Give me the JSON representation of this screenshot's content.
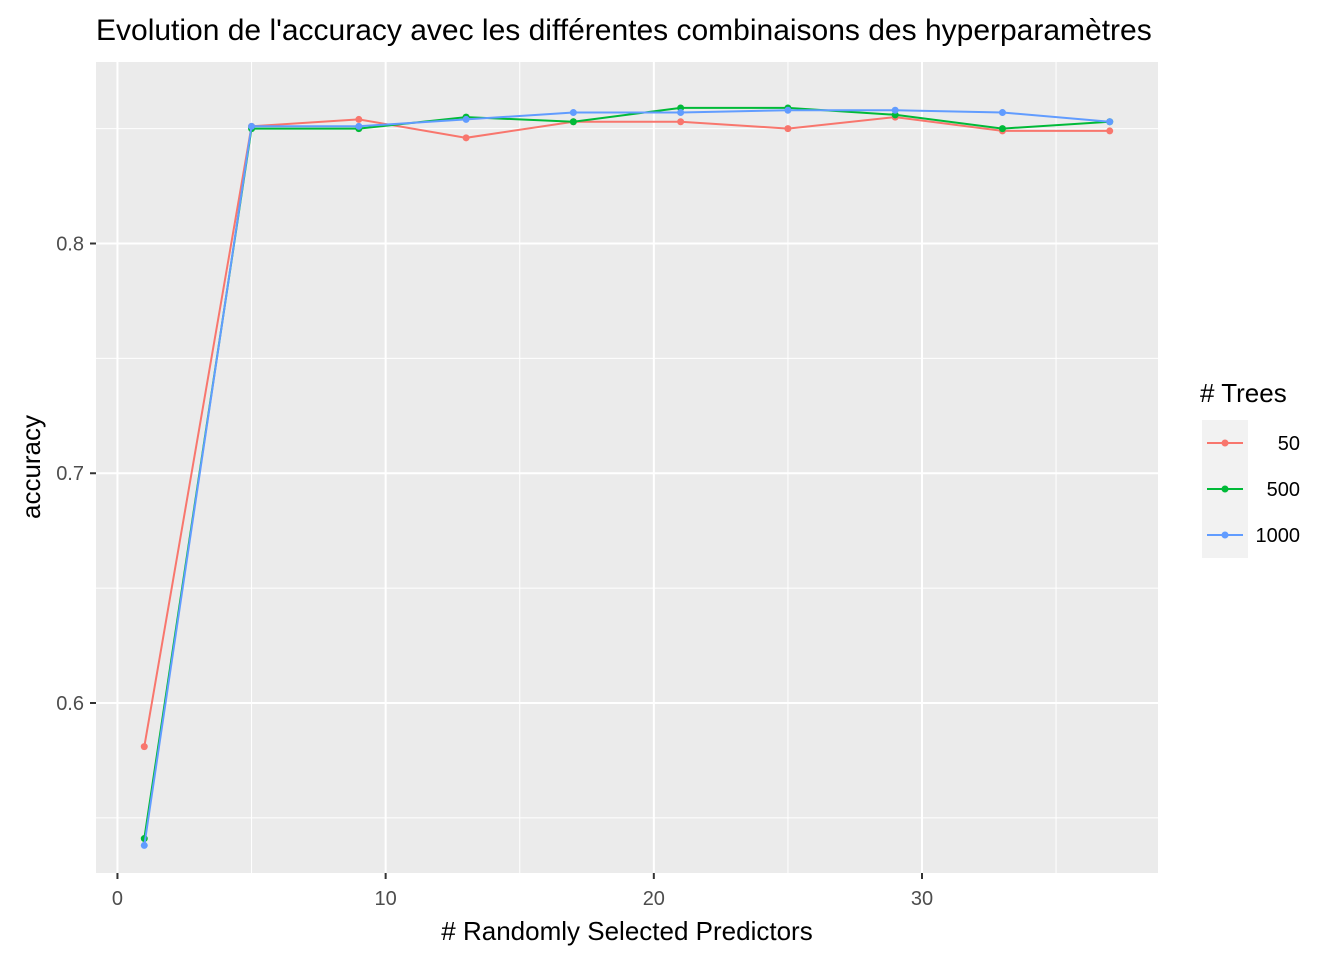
{
  "chart_data": {
    "type": "line",
    "title": "Evolution de l'accuracy avec les différentes combinaisons des hyperparamètres",
    "xlabel": "# Randomly Selected Predictors",
    "ylabel": "accuracy",
    "xlim": [
      -0.8,
      38.8
    ],
    "ylim": [
      0.526,
      0.879
    ],
    "x_ticks": [
      0,
      10,
      20,
      30
    ],
    "y_ticks": [
      0.6,
      0.7,
      0.8
    ],
    "x_minor": [
      5,
      15,
      25,
      35
    ],
    "y_minor": [
      0.55,
      0.65,
      0.75,
      0.85
    ],
    "grid": true,
    "legend_position": "right",
    "legend_title": "# Trees",
    "x": [
      1,
      5,
      9,
      13,
      17,
      21,
      25,
      29,
      33,
      37
    ],
    "series": [
      {
        "name": "50",
        "color": "#F8766D",
        "values": [
          0.581,
          0.851,
          0.854,
          0.846,
          0.853,
          0.853,
          0.85,
          0.855,
          0.849,
          0.849
        ]
      },
      {
        "name": "500",
        "color": "#00BA38",
        "values": [
          0.541,
          0.85,
          0.85,
          0.855,
          0.853,
          0.859,
          0.859,
          0.856,
          0.85,
          0.853
        ]
      },
      {
        "name": "1000",
        "color": "#619CFF",
        "values": [
          0.538,
          0.851,
          0.851,
          0.854,
          0.857,
          0.857,
          0.858,
          0.858,
          0.857,
          0.853
        ]
      }
    ]
  },
  "colors": {
    "panel_background": "#EBEBEB",
    "grid": "#FFFFFF",
    "legend_key_background": "#F2F2F2",
    "tick_text": "#4D4D4D"
  }
}
